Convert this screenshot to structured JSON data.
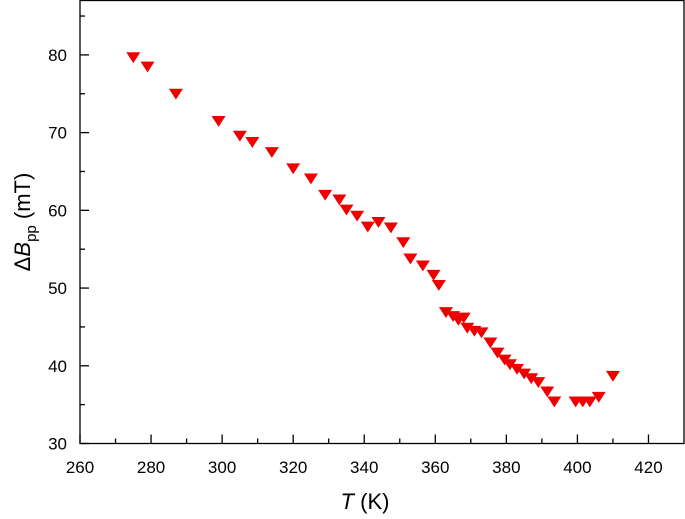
{
  "chart_data": {
    "type": "scatter",
    "xlabel": {
      "symbol": "T",
      "unit": "(K)"
    },
    "ylabel": {
      "prefix": "Δ",
      "symbol": "B",
      "subscript": "pp",
      "unit": "(mT)"
    },
    "xlim": [
      260,
      430
    ],
    "ylim": [
      30,
      87
    ],
    "xticks": [
      260,
      280,
      300,
      320,
      340,
      360,
      380,
      400,
      420
    ],
    "yticks": [
      30,
      40,
      50,
      60,
      70,
      80
    ],
    "marker": "triangle-down",
    "marker_color": "#ee0000",
    "grid": false,
    "legend": "none",
    "points": [
      [
        275,
        79.8
      ],
      [
        279,
        78.6
      ],
      [
        287,
        75.1
      ],
      [
        299,
        71.6
      ],
      [
        305,
        69.7
      ],
      [
        308.5,
        68.9
      ],
      [
        314,
        67.6
      ],
      [
        320,
        65.5
      ],
      [
        325,
        64.2
      ],
      [
        329,
        62.1
      ],
      [
        333,
        61.5
      ],
      [
        335,
        60.2
      ],
      [
        338,
        59.4
      ],
      [
        341,
        58.0
      ],
      [
        344,
        58.6
      ],
      [
        347.5,
        57.9
      ],
      [
        351,
        56.0
      ],
      [
        353,
        53.9
      ],
      [
        356.5,
        53.0
      ],
      [
        359.5,
        51.8
      ],
      [
        361,
        50.5
      ],
      [
        363,
        47.0
      ],
      [
        365,
        46.5
      ],
      [
        366.5,
        46.0
      ],
      [
        368,
        46.3
      ],
      [
        369,
        45.0
      ],
      [
        371,
        44.6
      ],
      [
        373,
        44.4
      ],
      [
        375.5,
        43.1
      ],
      [
        377.5,
        41.8
      ],
      [
        379.5,
        40.9
      ],
      [
        381,
        40.3
      ],
      [
        383,
        39.7
      ],
      [
        385,
        39.1
      ],
      [
        387,
        38.5
      ],
      [
        389,
        38.0
      ],
      [
        391.5,
        36.8
      ],
      [
        393.5,
        35.5
      ],
      [
        399.5,
        35.5
      ],
      [
        401.5,
        35.5
      ],
      [
        403.5,
        35.5
      ],
      [
        406,
        36.1
      ],
      [
        410,
        38.8
      ]
    ]
  }
}
